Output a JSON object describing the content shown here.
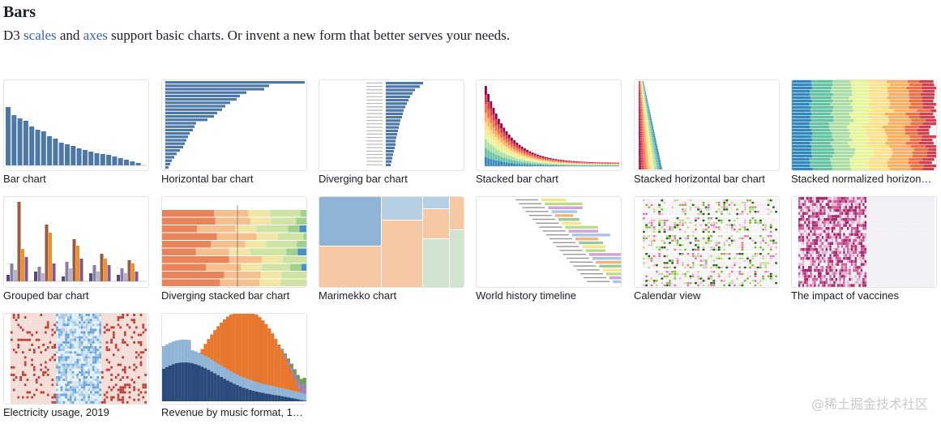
{
  "section": {
    "title": "Bars",
    "intro_prefix": "D3 ",
    "link_scales": "scales",
    "intro_and": " and ",
    "link_axes": "axes",
    "intro_suffix": " support basic charts. Or invent a new form that better serves your needs."
  },
  "cards": [
    {
      "label": "Bar chart",
      "icon": "bar-chart-thumbnail"
    },
    {
      "label": "Horizontal bar chart",
      "icon": "horizontal-bar-chart-thumbnail"
    },
    {
      "label": "Diverging bar chart",
      "icon": "diverging-bar-chart-thumbnail"
    },
    {
      "label": "Stacked bar chart",
      "icon": "stacked-bar-chart-thumbnail"
    },
    {
      "label": "Stacked horizontal bar chart",
      "icon": "stacked-horizontal-bar-chart-thumbnail"
    },
    {
      "label": "Stacked normalized horizon…",
      "icon": "stacked-normalized-horizontal-bar-chart-thumbnail"
    },
    {
      "label": "Grouped bar chart",
      "icon": "grouped-bar-chart-thumbnail"
    },
    {
      "label": "Diverging stacked bar chart",
      "icon": "diverging-stacked-bar-chart-thumbnail"
    },
    {
      "label": "Marimekko chart",
      "icon": "marimekko-chart-thumbnail"
    },
    {
      "label": "World history timeline",
      "icon": "world-history-timeline-thumbnail"
    },
    {
      "label": "Calendar view",
      "icon": "calendar-view-thumbnail"
    },
    {
      "label": "The impact of vaccines",
      "icon": "impact-of-vaccines-thumbnail"
    },
    {
      "label": "Electricity usage, 2019",
      "icon": "electricity-usage-thumbnail"
    },
    {
      "label": "Revenue by music format, 1…",
      "icon": "revenue-by-music-format-thumbnail"
    }
  ],
  "watermark": "@稀土掘金技术社区",
  "colors": {
    "link": "#3b5fc0",
    "bar_blue": "#4c78a8",
    "orange": "#f28e2b",
    "brown": "#9c5b3a",
    "purple": "#6a5a8c"
  }
}
